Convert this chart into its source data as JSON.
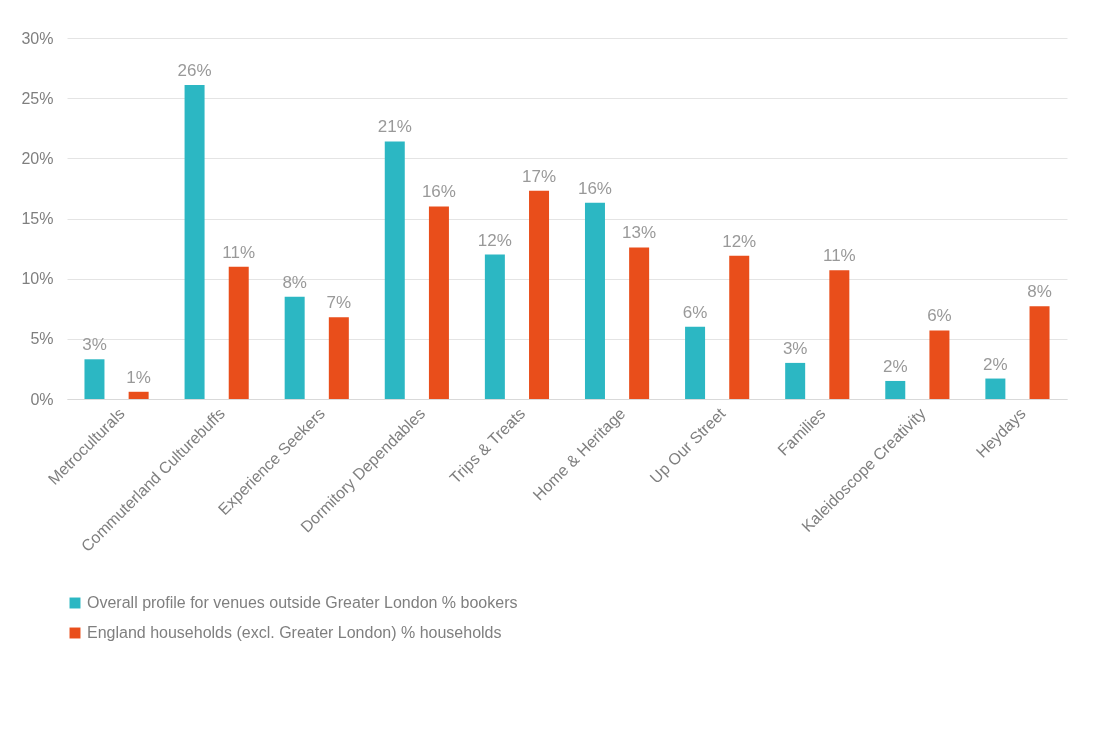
{
  "chart_data": {
    "type": "bar",
    "categories": [
      "Metroculturals",
      "Commuterland Culturebuffs",
      "Experience Seekers",
      "Dormitory Dependables",
      "Trips & Treats",
      "Home & Heritage",
      "Up Our Street",
      "Families",
      "Kaleidoscope Creativity",
      "Heydays"
    ],
    "series": [
      {
        "name": "Overall profile for venues outside Greater London % bookers",
        "color": "#2cb7c3",
        "values": [
          3.3,
          26.1,
          8.5,
          21.4,
          12.0,
          16.3,
          6.0,
          3.0,
          1.5,
          1.7
        ],
        "value_labels": [
          "3%",
          "26%",
          "8%",
          "21%",
          "12%",
          "16%",
          "6%",
          "3%",
          "2%",
          "2%"
        ]
      },
      {
        "name": "England households (excl. Greater London) % households",
        "color": "#e94e1b",
        "values": [
          0.6,
          11.0,
          6.8,
          16.0,
          17.3,
          12.6,
          11.9,
          10.7,
          5.7,
          7.7
        ],
        "value_labels": [
          "1%",
          "11%",
          "7%",
          "16%",
          "17%",
          "13%",
          "12%",
          "11%",
          "6%",
          "8%"
        ]
      }
    ],
    "ylim": [
      0,
      30
    ],
    "yticks": [
      {
        "value": 0,
        "label": "0%"
      },
      {
        "value": 5,
        "label": "5%"
      },
      {
        "value": 10,
        "label": "10%"
      },
      {
        "value": 15,
        "label": "15%"
      },
      {
        "value": 20,
        "label": "20%"
      },
      {
        "value": 25,
        "label": "25%"
      },
      {
        "value": 30,
        "label": "30%"
      }
    ],
    "grid": "y",
    "legend": "bottom"
  }
}
